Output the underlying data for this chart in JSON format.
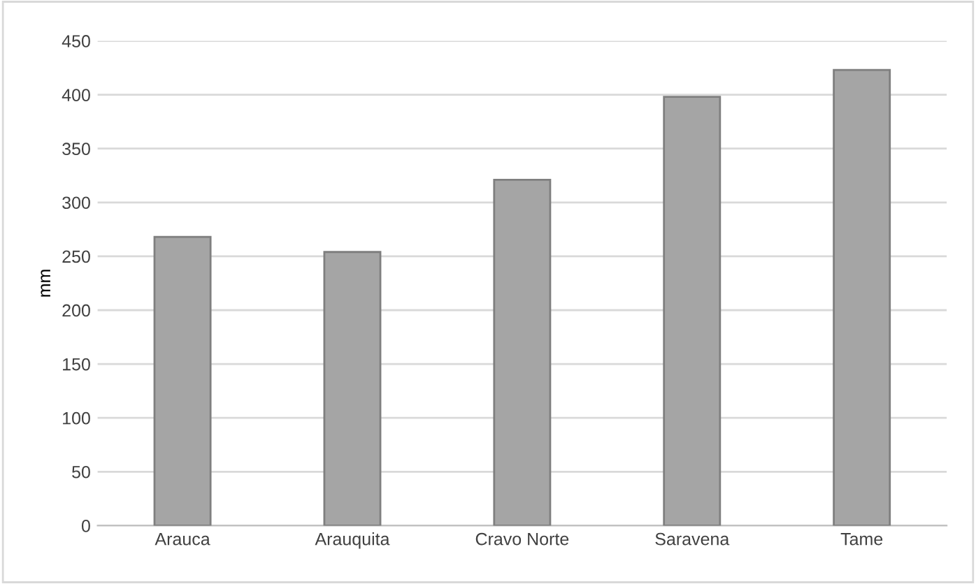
{
  "chart_data": {
    "type": "bar",
    "ylabel": "mm",
    "categories": [
      "Arauca",
      "Arauquita",
      "Cravo Norte",
      "Saravena",
      "Tame"
    ],
    "values": [
      268,
      254,
      321,
      398,
      423
    ],
    "color": "#a5a5a5",
    "ylim": [
      0,
      450
    ],
    "yticks": [
      0,
      50,
      100,
      150,
      200,
      250,
      300,
      350,
      400,
      450
    ],
    "grid": "y"
  }
}
